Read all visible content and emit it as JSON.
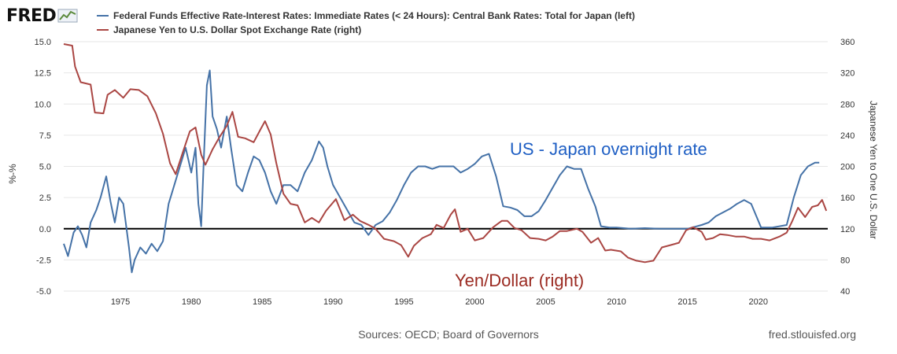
{
  "logo": {
    "text": "FRED",
    "icon": "sparkline-chart-icon"
  },
  "legend": [
    {
      "label": "Federal Funds Effective Rate-Interest Rates: Immediate Rates (< 24 Hours): Central Bank Rates: Total for Japan (left)",
      "color": "#4572a7"
    },
    {
      "label": "Japanese Yen to U.S. Dollar Spot Exchange Rate (right)",
      "color": "#aa4643"
    }
  ],
  "annotations": {
    "spread": {
      "text": "US - Japan overnight rate",
      "color": "#1f5fc4"
    },
    "fx": {
      "text": "Yen/Dollar (right)",
      "color": "#9b2b22"
    }
  },
  "footer": {
    "sources": "Sources: OECD; Board of Governors",
    "url": "fred.stlouisfed.org"
  },
  "chart_data": {
    "type": "line",
    "y_left_label": "%-%",
    "y_right_label": "Japanese Yen to One U.S. Dollar",
    "x_range": [
      1971.0,
      2024.9
    ],
    "x_ticks": [
      "1975",
      "1980",
      "1985",
      "1990",
      "1995",
      "2000",
      "2005",
      "2010",
      "2015",
      "2020"
    ],
    "y_left_range": [
      -5.0,
      15.0
    ],
    "y_left_ticks": [
      "-5.0",
      "-2.5",
      "0.0",
      "2.5",
      "5.0",
      "7.5",
      "10.0",
      "12.5",
      "15.0"
    ],
    "y_right_range": [
      40,
      360
    ],
    "y_right_ticks": [
      "40",
      "80",
      "120",
      "160",
      "200",
      "240",
      "280",
      "320",
      "360"
    ],
    "grid": "horizontal",
    "zero_line": 0,
    "series": [
      {
        "name": "Federal Funds Effective Rate-Interest Rates: Immediate Rates (< 24 Hours): Central Bank Rates: Total for Japan (left)",
        "axis": "left",
        "color": "#4572a7",
        "points": [
          [
            1971.0,
            -1.2
          ],
          [
            1971.3,
            -2.2
          ],
          [
            1971.7,
            -0.3
          ],
          [
            1972.0,
            0.2
          ],
          [
            1972.3,
            -0.5
          ],
          [
            1972.6,
            -1.5
          ],
          [
            1972.9,
            0.5
          ],
          [
            1973.3,
            1.5
          ],
          [
            1973.6,
            2.5
          ],
          [
            1974.0,
            4.2
          ],
          [
            1974.3,
            2.2
          ],
          [
            1974.6,
            0.5
          ],
          [
            1974.9,
            2.5
          ],
          [
            1975.2,
            2.0
          ],
          [
            1975.6,
            -1.5
          ],
          [
            1975.8,
            -3.5
          ],
          [
            1976.0,
            -2.5
          ],
          [
            1976.4,
            -1.5
          ],
          [
            1976.8,
            -2.0
          ],
          [
            1977.2,
            -1.2
          ],
          [
            1977.6,
            -1.8
          ],
          [
            1978.0,
            -1.0
          ],
          [
            1978.4,
            2.0
          ],
          [
            1978.8,
            3.5
          ],
          [
            1979.2,
            5.0
          ],
          [
            1979.6,
            6.5
          ],
          [
            1980.0,
            4.5
          ],
          [
            1980.3,
            6.5
          ],
          [
            1980.5,
            2.0
          ],
          [
            1980.7,
            0.2
          ],
          [
            1980.9,
            6.0
          ],
          [
            1981.1,
            11.5
          ],
          [
            1981.3,
            12.7
          ],
          [
            1981.5,
            9.0
          ],
          [
            1981.8,
            8.0
          ],
          [
            1982.1,
            6.5
          ],
          [
            1982.5,
            9.0
          ],
          [
            1982.8,
            6.5
          ],
          [
            1983.2,
            3.5
          ],
          [
            1983.6,
            3.0
          ],
          [
            1984.0,
            4.5
          ],
          [
            1984.4,
            5.8
          ],
          [
            1984.8,
            5.5
          ],
          [
            1985.2,
            4.5
          ],
          [
            1985.6,
            3.0
          ],
          [
            1986.0,
            2.0
          ],
          [
            1986.5,
            3.5
          ],
          [
            1987.0,
            3.5
          ],
          [
            1987.5,
            3.0
          ],
          [
            1988.0,
            4.5
          ],
          [
            1988.5,
            5.5
          ],
          [
            1989.0,
            7.0
          ],
          [
            1989.3,
            6.5
          ],
          [
            1989.6,
            5.0
          ],
          [
            1990.0,
            3.5
          ],
          [
            1990.5,
            2.5
          ],
          [
            1991.0,
            1.5
          ],
          [
            1991.5,
            0.5
          ],
          [
            1992.0,
            0.3
          ],
          [
            1992.5,
            -0.5
          ],
          [
            1993.0,
            0.3
          ],
          [
            1993.5,
            0.6
          ],
          [
            1994.0,
            1.3
          ],
          [
            1994.5,
            2.3
          ],
          [
            1995.0,
            3.5
          ],
          [
            1995.5,
            4.5
          ],
          [
            1996.0,
            5.0
          ],
          [
            1996.5,
            5.0
          ],
          [
            1997.0,
            4.8
          ],
          [
            1997.5,
            5.0
          ],
          [
            1998.0,
            5.0
          ],
          [
            1998.5,
            5.0
          ],
          [
            1999.0,
            4.5
          ],
          [
            1999.5,
            4.8
          ],
          [
            2000.0,
            5.2
          ],
          [
            2000.5,
            5.8
          ],
          [
            2001.0,
            6.0
          ],
          [
            2001.5,
            4.2
          ],
          [
            2002.0,
            1.8
          ],
          [
            2002.5,
            1.7
          ],
          [
            2003.0,
            1.5
          ],
          [
            2003.5,
            1.0
          ],
          [
            2004.0,
            1.0
          ],
          [
            2004.5,
            1.4
          ],
          [
            2005.0,
            2.3
          ],
          [
            2005.5,
            3.3
          ],
          [
            2006.0,
            4.3
          ],
          [
            2006.5,
            5.0
          ],
          [
            2007.0,
            4.8
          ],
          [
            2007.5,
            4.8
          ],
          [
            2008.0,
            3.2
          ],
          [
            2008.5,
            1.8
          ],
          [
            2008.9,
            0.2
          ],
          [
            2009.5,
            0.1
          ],
          [
            2010.0,
            0.1
          ],
          [
            2011.0,
            0.0
          ],
          [
            2012.0,
            0.05
          ],
          [
            2013.0,
            0.0
          ],
          [
            2014.0,
            0.0
          ],
          [
            2015.0,
            0.0
          ],
          [
            2016.0,
            0.3
          ],
          [
            2016.5,
            0.5
          ],
          [
            2017.0,
            1.0
          ],
          [
            2017.5,
            1.3
          ],
          [
            2018.0,
            1.6
          ],
          [
            2018.5,
            2.0
          ],
          [
            2019.0,
            2.3
          ],
          [
            2019.5,
            2.0
          ],
          [
            2020.2,
            0.1
          ],
          [
            2021.0,
            0.1
          ],
          [
            2022.0,
            0.3
          ],
          [
            2022.5,
            2.5
          ],
          [
            2023.0,
            4.3
          ],
          [
            2023.5,
            5.0
          ],
          [
            2024.0,
            5.3
          ],
          [
            2024.3,
            5.3
          ]
        ]
      },
      {
        "name": "Japanese Yen to U.S. Dollar Spot Exchange Rate (right)",
        "axis": "right",
        "color": "#aa4643",
        "points": [
          [
            1971.0,
            357
          ],
          [
            1971.6,
            355
          ],
          [
            1971.8,
            328
          ],
          [
            1972.2,
            308
          ],
          [
            1972.9,
            305
          ],
          [
            1973.2,
            269
          ],
          [
            1973.8,
            268
          ],
          [
            1974.1,
            292
          ],
          [
            1974.6,
            298
          ],
          [
            1975.2,
            288
          ],
          [
            1975.7,
            299
          ],
          [
            1976.3,
            298
          ],
          [
            1976.9,
            290
          ],
          [
            1977.5,
            268
          ],
          [
            1978.0,
            242
          ],
          [
            1978.5,
            204
          ],
          [
            1978.9,
            190
          ],
          [
            1979.4,
            218
          ],
          [
            1979.9,
            245
          ],
          [
            1980.3,
            250
          ],
          [
            1980.7,
            215
          ],
          [
            1981.0,
            202
          ],
          [
            1981.5,
            222
          ],
          [
            1982.0,
            238
          ],
          [
            1982.5,
            252
          ],
          [
            1982.9,
            270
          ],
          [
            1983.3,
            238
          ],
          [
            1983.8,
            236
          ],
          [
            1984.4,
            231
          ],
          [
            1984.9,
            248
          ],
          [
            1985.2,
            258
          ],
          [
            1985.6,
            241
          ],
          [
            1986.0,
            204
          ],
          [
            1986.5,
            165
          ],
          [
            1987.0,
            152
          ],
          [
            1987.5,
            150
          ],
          [
            1988.0,
            128
          ],
          [
            1988.5,
            134
          ],
          [
            1989.0,
            128
          ],
          [
            1989.5,
            143
          ],
          [
            1990.2,
            158
          ],
          [
            1990.8,
            131
          ],
          [
            1991.4,
            138
          ],
          [
            1991.9,
            130
          ],
          [
            1992.5,
            125
          ],
          [
            1993.0,
            120
          ],
          [
            1993.6,
            107
          ],
          [
            1994.3,
            104
          ],
          [
            1994.8,
            99
          ],
          [
            1995.3,
            84
          ],
          [
            1995.7,
            98
          ],
          [
            1996.3,
            108
          ],
          [
            1996.9,
            113
          ],
          [
            1997.3,
            125
          ],
          [
            1997.8,
            121
          ],
          [
            1998.3,
            138
          ],
          [
            1998.6,
            145
          ],
          [
            1999.0,
            116
          ],
          [
            1999.5,
            120
          ],
          [
            2000.0,
            105
          ],
          [
            2000.6,
            108
          ],
          [
            2001.3,
            122
          ],
          [
            2001.9,
            130
          ],
          [
            2002.3,
            130
          ],
          [
            2002.8,
            121
          ],
          [
            2003.3,
            118
          ],
          [
            2003.9,
            108
          ],
          [
            2004.5,
            107
          ],
          [
            2005.0,
            105
          ],
          [
            2005.5,
            110
          ],
          [
            2006.0,
            117
          ],
          [
            2006.5,
            117
          ],
          [
            2007.2,
            120
          ],
          [
            2007.6,
            116
          ],
          [
            2008.2,
            102
          ],
          [
            2008.7,
            108
          ],
          [
            2009.2,
            92
          ],
          [
            2009.6,
            93
          ],
          [
            2010.3,
            91
          ],
          [
            2010.8,
            83
          ],
          [
            2011.4,
            79
          ],
          [
            2012.0,
            77
          ],
          [
            2012.6,
            79
          ],
          [
            2013.2,
            96
          ],
          [
            2013.8,
            99
          ],
          [
            2014.4,
            102
          ],
          [
            2014.9,
            118
          ],
          [
            2015.4,
            122
          ],
          [
            2016.0,
            116
          ],
          [
            2016.3,
            106
          ],
          [
            2016.8,
            108
          ],
          [
            2017.3,
            113
          ],
          [
            2017.8,
            112
          ],
          [
            2018.4,
            110
          ],
          [
            2019.0,
            110
          ],
          [
            2019.6,
            107
          ],
          [
            2020.2,
            107
          ],
          [
            2020.8,
            105
          ],
          [
            2021.5,
            110
          ],
          [
            2022.0,
            115
          ],
          [
            2022.4,
            130
          ],
          [
            2022.8,
            147
          ],
          [
            2023.3,
            135
          ],
          [
            2023.8,
            148
          ],
          [
            2024.2,
            150
          ],
          [
            2024.5,
            157
          ],
          [
            2024.8,
            143
          ]
        ]
      }
    ]
  }
}
